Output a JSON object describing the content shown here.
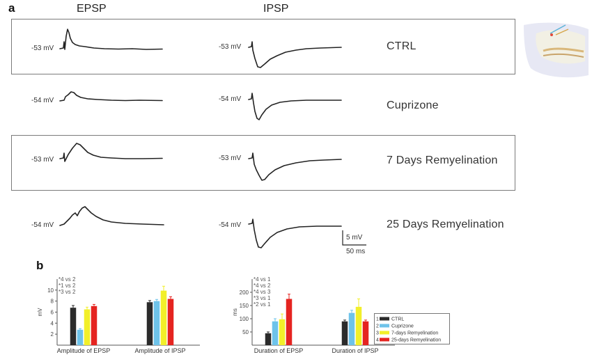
{
  "panel_a": {
    "letter": "a",
    "col_epsp": "EPSP",
    "col_ipsp": "IPSP",
    "rows": [
      {
        "condition": "CTRL",
        "epsp_mv": "-53 mV",
        "ipsp_mv": "-53 mV"
      },
      {
        "condition": "Cuprizone",
        "epsp_mv": "-54 mV",
        "ipsp_mv": "-54 mV"
      },
      {
        "condition": "7 Days Remyelination",
        "epsp_mv": "-53 mV",
        "ipsp_mv": "-53 mV"
      },
      {
        "condition": "25 Days Remyelination",
        "epsp_mv": "-54 mV",
        "ipsp_mv": "-54 mV"
      }
    ],
    "scale_mv": "5 mV",
    "scale_ms": "50 ms"
  },
  "panel_b": {
    "letter": "b",
    "legend": [
      {
        "num": "1",
        "label": "CTRL",
        "color": "#2b2b2b"
      },
      {
        "num": "2",
        "label": "Cuprizone",
        "color": "#6ec3ea"
      },
      {
        "num": "3",
        "label": "7-days Remyelination",
        "color": "#f2ef2a"
      },
      {
        "num": "4",
        "label": "25-days Remyelination",
        "color": "#e52420"
      }
    ],
    "sig_left": [
      "*4 vs 2",
      "*1 vs 2",
      "*3 vs 2"
    ],
    "sig_right": [
      "*4 vs 1",
      "*4 vs 2",
      "*4 vs 3",
      "*3 vs 1",
      "*2 vs 1"
    ]
  },
  "chart_data": [
    {
      "type": "bar",
      "ylabel": "mV",
      "ylim": [
        0,
        12
      ],
      "yticks": [
        2,
        4,
        6,
        8,
        10
      ],
      "categories": [
        "Amplitude of EPSP",
        "Amplitude of IPSP"
      ],
      "series": [
        {
          "name": "CTRL",
          "values": [
            6.8,
            7.8
          ],
          "errors": [
            0.4,
            0.3
          ]
        },
        {
          "name": "Cuprizone",
          "values": [
            2.8,
            8.0
          ],
          "errors": [
            0.2,
            0.3
          ]
        },
        {
          "name": "7-days Remyelination",
          "values": [
            6.5,
            9.9
          ],
          "errors": [
            0.4,
            0.8
          ]
        },
        {
          "name": "25-days Remyelination",
          "values": [
            7.1,
            8.4
          ],
          "errors": [
            0.3,
            0.4
          ]
        }
      ]
    },
    {
      "type": "bar",
      "ylabel": "ms",
      "ylim": [
        0,
        250
      ],
      "yticks": [
        50,
        100,
        150,
        200
      ],
      "categories": [
        "Duration of EPSP",
        "Duration of IPSP"
      ],
      "series": [
        {
          "name": "CTRL",
          "values": [
            45,
            90
          ],
          "errors": [
            5,
            5
          ]
        },
        {
          "name": "Cuprizone",
          "values": [
            90,
            122
          ],
          "errors": [
            10,
            10
          ]
        },
        {
          "name": "7-days Remyelination",
          "values": [
            98,
            145
          ],
          "errors": [
            20,
            30
          ]
        },
        {
          "name": "25-days Remyelination",
          "values": [
            175,
            90
          ],
          "errors": [
            18,
            5
          ]
        }
      ]
    }
  ]
}
